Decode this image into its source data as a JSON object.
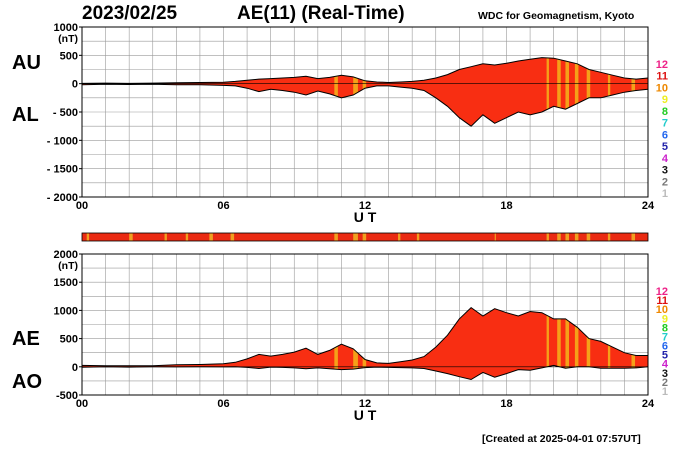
{
  "header": {
    "date": "2023/02/25",
    "title": "AE(11) (Real-Time)",
    "source": "WDC for Geomagnetism, Kyoto"
  },
  "footer": {
    "created": "[Created at 2025-04-01 07:57UT]"
  },
  "labels": {
    "top_upper": "AU",
    "top_lower": "AL",
    "bottom_upper": "AE",
    "bottom_lower": "AO",
    "unit": "(nT)",
    "xlabel": "U T"
  },
  "colors": {
    "fill": "#f82e12",
    "alt_fill": "#f5a019",
    "grid": "#9a9a9a",
    "strip_base": "#ea2a12",
    "strip_alt": "#f0a020"
  },
  "station_legend": [
    {
      "label": "12",
      "color": "#ee2288"
    },
    {
      "label": "11",
      "color": "#dd1111"
    },
    {
      "label": "10",
      "color": "#ee8800"
    },
    {
      "label": "9",
      "color": "#eeee22"
    },
    {
      "label": "8",
      "color": "#22cc22"
    },
    {
      "label": "7",
      "color": "#22cccc"
    },
    {
      "label": "6",
      "color": "#2266ee"
    },
    {
      "label": "5",
      "color": "#2222aa"
    },
    {
      "label": "4",
      "color": "#cc22cc"
    },
    {
      "label": "3",
      "color": "#111111"
    },
    {
      "label": "2",
      "color": "#777777"
    },
    {
      "label": "1",
      "color": "#bbbbbb"
    }
  ],
  "chart_data": [
    {
      "type": "area",
      "id": "au-al",
      "xlabel": "U T",
      "ylabel": "(nT)",
      "xlim": [
        0,
        24
      ],
      "ylim": [
        -2000,
        1000
      ],
      "xticks": [
        0,
        6,
        12,
        18,
        24
      ],
      "xtick_labels": [
        "00",
        "06",
        "12",
        "18",
        "24"
      ],
      "yticks": [
        1000,
        500,
        0,
        -500,
        -1000,
        -1500,
        -2000
      ],
      "ytick_labels": [
        "1000",
        "500",
        "0",
        "- 500",
        "- 1000",
        "- 1500",
        "- 2000"
      ],
      "x": [
        0,
        1,
        2,
        3,
        4,
        5,
        6,
        6.5,
        7,
        7.5,
        8,
        8.5,
        9,
        9.5,
        10,
        10.5,
        11,
        11.5,
        12,
        12.5,
        13,
        13.5,
        14,
        14.5,
        15,
        15.5,
        16,
        16.5,
        17,
        17.5,
        18,
        18.5,
        19,
        19.5,
        20,
        20.5,
        21,
        21.5,
        22,
        22.5,
        23,
        23.5,
        24
      ],
      "series": [
        {
          "name": "AU",
          "values": [
            5,
            10,
            5,
            10,
            15,
            20,
            25,
            40,
            60,
            80,
            90,
            100,
            110,
            130,
            90,
            110,
            150,
            120,
            50,
            30,
            20,
            30,
            40,
            60,
            100,
            160,
            250,
            300,
            350,
            330,
            360,
            400,
            430,
            460,
            450,
            400,
            350,
            250,
            200,
            150,
            100,
            80,
            100
          ]
        },
        {
          "name": "AL",
          "values": [
            -20,
            -10,
            -15,
            -10,
            -20,
            -20,
            -30,
            -40,
            -80,
            -140,
            -100,
            -120,
            -150,
            -200,
            -130,
            -180,
            -250,
            -200,
            -80,
            -40,
            -40,
            -60,
            -80,
            -120,
            -250,
            -400,
            -600,
            -750,
            -550,
            -700,
            -600,
            -500,
            -550,
            -500,
            -400,
            -450,
            -350,
            -250,
            -250,
            -200,
            -150,
            -120,
            -100
          ]
        }
      ],
      "alt_color_bands": [
        [
          10.7,
          10.85
        ],
        [
          11.5,
          11.7
        ],
        [
          11.9,
          12.05
        ],
        [
          19.7,
          19.8
        ],
        [
          20.15,
          20.3
        ],
        [
          20.5,
          20.65
        ],
        [
          20.9,
          21.05
        ],
        [
          21.4,
          21.55
        ],
        [
          22.3,
          22.4
        ],
        [
          23.3,
          23.45
        ]
      ]
    },
    {
      "type": "area",
      "id": "ae-ao",
      "xlabel": "U T",
      "ylabel": "(nT)",
      "xlim": [
        0,
        24
      ],
      "ylim": [
        -500,
        2000
      ],
      "xticks": [
        0,
        6,
        12,
        18,
        24
      ],
      "xtick_labels": [
        "00",
        "06",
        "12",
        "18",
        "24"
      ],
      "yticks": [
        2000,
        1500,
        1000,
        500,
        0,
        -500
      ],
      "ytick_labels": [
        "2000",
        "1500",
        "1000",
        "500",
        "0",
        "-500"
      ],
      "x": [
        0,
        1,
        2,
        3,
        4,
        5,
        6,
        6.5,
        7,
        7.5,
        8,
        8.5,
        9,
        9.5,
        10,
        10.5,
        11,
        11.5,
        12,
        12.5,
        13,
        13.5,
        14,
        14.5,
        15,
        15.5,
        16,
        16.5,
        17,
        17.5,
        18,
        18.5,
        19,
        19.5,
        20,
        20.5,
        21,
        21.5,
        22,
        22.5,
        23,
        23.5,
        24
      ],
      "series": [
        {
          "name": "AE",
          "values": [
            25,
            20,
            20,
            20,
            35,
            40,
            55,
            80,
            140,
            220,
            190,
            220,
            260,
            330,
            220,
            290,
            400,
            320,
            130,
            70,
            60,
            90,
            120,
            180,
            350,
            560,
            850,
            1050,
            900,
            1030,
            960,
            900,
            980,
            960,
            850,
            850,
            700,
            500,
            450,
            350,
            250,
            200,
            200
          ]
        },
        {
          "name": "AO",
          "values": [
            -7,
            0,
            -5,
            0,
            -2,
            0,
            -2,
            0,
            -10,
            -30,
            -5,
            -10,
            -20,
            -35,
            -20,
            -35,
            -50,
            -40,
            -15,
            -5,
            -10,
            -15,
            -20,
            -30,
            -75,
            -120,
            -175,
            -225,
            -100,
            -185,
            -120,
            -50,
            -60,
            -20,
            25,
            -25,
            0,
            0,
            -25,
            -25,
            -25,
            -20,
            0
          ]
        }
      ],
      "alt_color_bands": [
        [
          10.7,
          10.85
        ],
        [
          11.5,
          11.7
        ],
        [
          11.9,
          12.05
        ],
        [
          19.7,
          19.8
        ],
        [
          20.15,
          20.3
        ],
        [
          20.5,
          20.65
        ],
        [
          20.9,
          21.05
        ],
        [
          21.4,
          21.55
        ],
        [
          22.3,
          22.4
        ],
        [
          23.3,
          23.45
        ]
      ]
    }
  ],
  "coverage_strip": {
    "alt_bands": [
      [
        0.2,
        0.3
      ],
      [
        2.0,
        2.15
      ],
      [
        3.5,
        3.6
      ],
      [
        4.4,
        4.5
      ],
      [
        5.4,
        5.55
      ],
      [
        6.3,
        6.45
      ],
      [
        10.7,
        10.85
      ],
      [
        11.5,
        11.7
      ],
      [
        11.9,
        12.05
      ],
      [
        13.4,
        13.5
      ],
      [
        14.2,
        14.3
      ],
      [
        17.5,
        17.55
      ],
      [
        19.7,
        19.8
      ],
      [
        20.15,
        20.3
      ],
      [
        20.5,
        20.65
      ],
      [
        20.9,
        21.05
      ],
      [
        21.4,
        21.55
      ],
      [
        22.3,
        22.4
      ],
      [
        23.3,
        23.45
      ]
    ]
  }
}
